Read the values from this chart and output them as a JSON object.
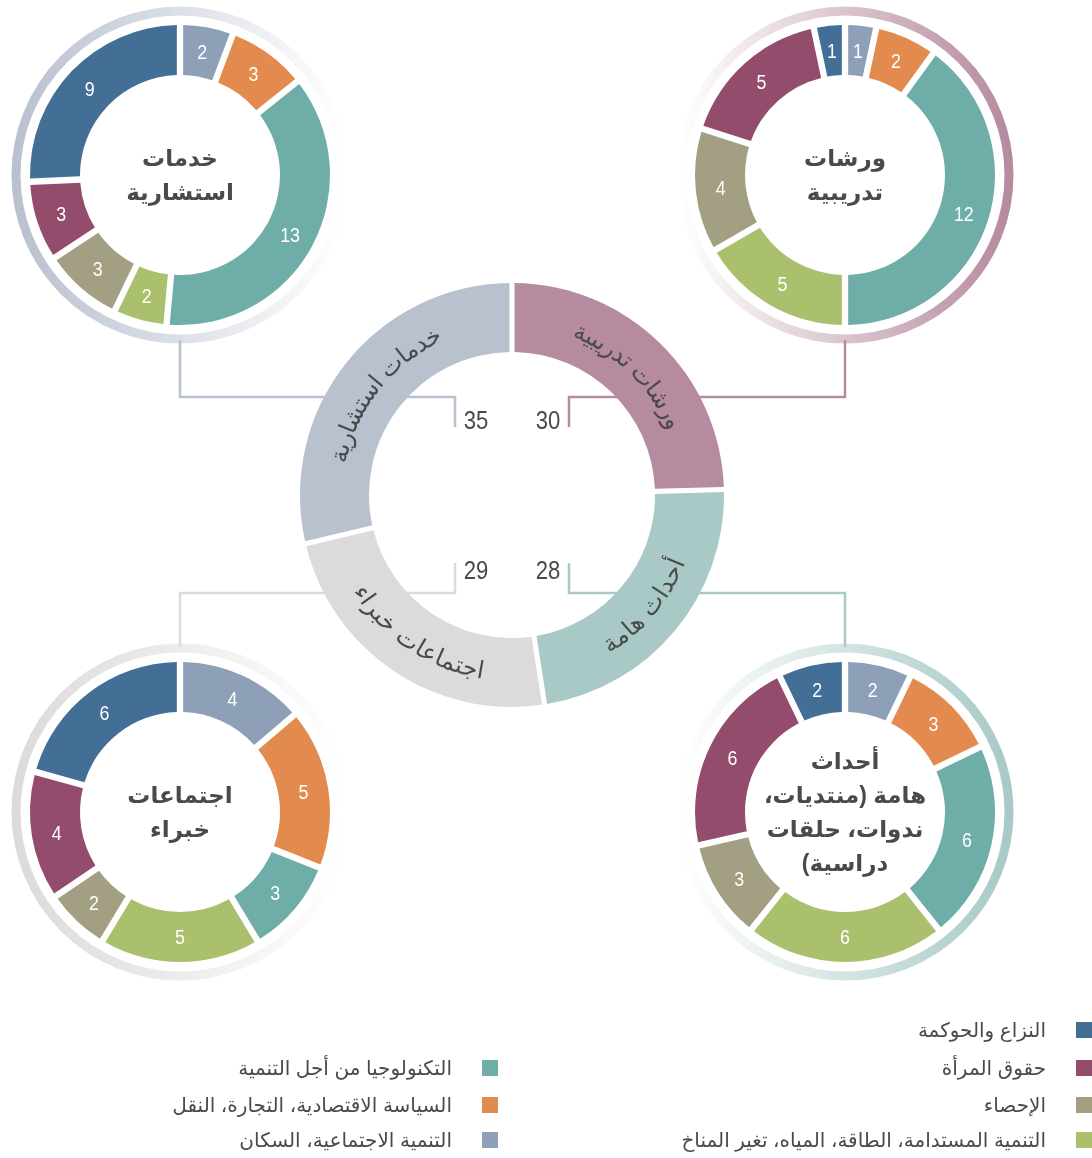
{
  "chart_data": [
    {
      "type": "donut",
      "categories": [
        "النزاع والحوكمة",
        "حقوق المرأة",
        "الإحصاء",
        "التنمية المستدامة، الطاقة، المياه، تغير المناخ",
        "التكنولوجيا من أجل التنمية",
        "السياسة الاقتصادية، التجارة، النقل",
        "التنمية الاجتماعية، السكان"
      ],
      "colors": [
        "#436f96",
        "#944c6d",
        "#a39f83",
        "#abc06d",
        "#6fada8",
        "#e38b4e",
        "#8ea0b8"
      ],
      "data_labels": true,
      "legend": "bottom",
      "series": [
        {
          "name": "خدمات\nاستشارية",
          "values": [
            9,
            3,
            3,
            2,
            13,
            3,
            2
          ]
        },
        {
          "name": "ورشات\nتدريبية",
          "values": [
            1,
            5,
            4,
            5,
            12,
            2,
            1
          ]
        },
        {
          "name": "اجتماعات\nخبراء",
          "values": [
            6,
            4,
            2,
            5,
            3,
            5,
            4
          ]
        },
        {
          "name": "أحداث\nهامة (منتديات،\nندوات، حلقات\nدراسية)",
          "values": [
            2,
            6,
            3,
            6,
            6,
            3,
            2
          ]
        }
      ]
    },
    {
      "type": "donut",
      "categories": [
        "خدمات استشارية",
        "اجتماعات خبراء",
        "أحداث هامة",
        "ورشات تدريبية"
      ],
      "values": [
        35,
        29,
        28,
        30
      ],
      "colors": [
        "#b9c1cf",
        "#dcdadb",
        "#a8c9c6",
        "#b68a9f"
      ],
      "data_labels": true
    }
  ]
}
